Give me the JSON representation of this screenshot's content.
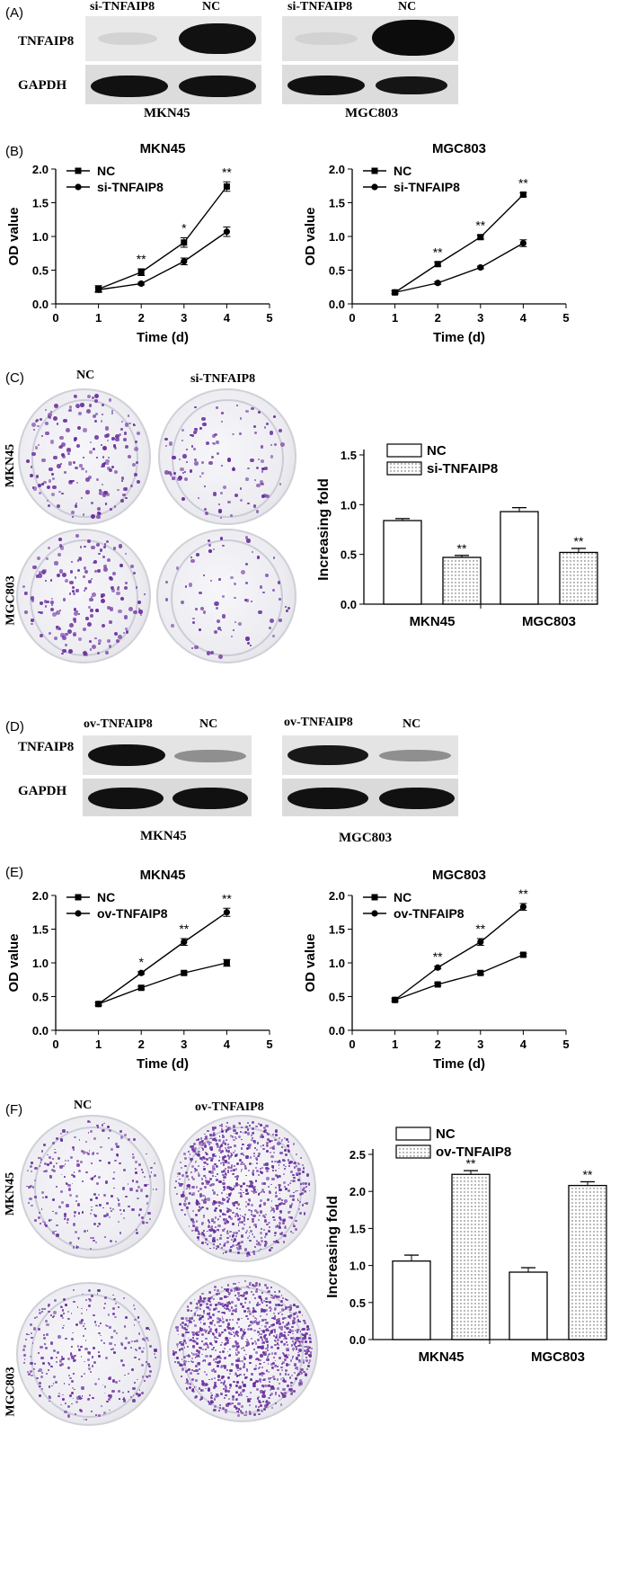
{
  "panels": {
    "A": {
      "label": "(A)",
      "lanes": [
        "si-TNFAIP8",
        "NC",
        "si-TNFAIP8",
        "NC"
      ],
      "rows": [
        "TNFAIP8",
        "GAPDH"
      ],
      "cells": [
        "MKN45",
        "MGC803"
      ]
    },
    "B": {
      "label": "(B)"
    },
    "C": {
      "label": "(C)",
      "cols": [
        "NC",
        "si-TNFAIP8"
      ],
      "rows": [
        "MKN45",
        "MGC803"
      ]
    },
    "D": {
      "label": "(D)",
      "lanes": [
        "ov-TNFAIP8",
        "NC",
        "ov-TNFAIP8",
        "NC"
      ],
      "rows": [
        "TNFAIP8",
        "GAPDH"
      ],
      "cells": [
        "MKN45",
        "MGC803"
      ]
    },
    "E": {
      "label": "(E)"
    },
    "F": {
      "label": "(F)",
      "cols": [
        "NC",
        "ov-TNFAIP8"
      ],
      "rows": [
        "MKN45",
        "MGC803"
      ]
    }
  },
  "chart_data": [
    {
      "id": "B-MKN45",
      "type": "line",
      "title": "MKN45",
      "xlabel": "Time (d)",
      "ylabel": "OD value",
      "xlim": [
        0,
        5
      ],
      "ylim": [
        0,
        2.0
      ],
      "xticks": [
        "0",
        "1",
        "2",
        "3",
        "4",
        "5"
      ],
      "yticks": [
        "0.0",
        "0.5",
        "1.0",
        "1.5",
        "2.0"
      ],
      "legend_position": "top-left",
      "x": [
        1,
        2,
        3,
        4
      ],
      "series": [
        {
          "name": "NC",
          "marker": "square",
          "values": [
            0.22,
            0.47,
            0.91,
            1.74
          ],
          "errors": [
            0.05,
            0.05,
            0.07,
            0.07
          ]
        },
        {
          "name": "si-TNFAIP8",
          "marker": "circle",
          "values": [
            0.21,
            0.3,
            0.63,
            1.07
          ],
          "errors": [
            0.03,
            0.02,
            0.05,
            0.07
          ]
        }
      ],
      "annotations": [
        {
          "x": 2,
          "text": "**"
        },
        {
          "x": 3,
          "text": "*"
        },
        {
          "x": 4,
          "text": "**"
        }
      ]
    },
    {
      "id": "B-MGC803",
      "type": "line",
      "title": "MGC803",
      "xlabel": "Time (d)",
      "ylabel": "OD value",
      "xlim": [
        0,
        5
      ],
      "ylim": [
        0,
        2.0
      ],
      "xticks": [
        "0",
        "1",
        "2",
        "3",
        "4",
        "5"
      ],
      "yticks": [
        "0.0",
        "0.5",
        "1.0",
        "1.5",
        "2.0"
      ],
      "legend_position": "top-left",
      "x": [
        1,
        2,
        3,
        4
      ],
      "series": [
        {
          "name": "NC",
          "marker": "square",
          "values": [
            0.17,
            0.59,
            0.99,
            1.62
          ],
          "errors": [
            0.02,
            0.03,
            0.03,
            0.03
          ]
        },
        {
          "name": "si-TNFAIP8",
          "marker": "circle",
          "values": [
            0.17,
            0.31,
            0.54,
            0.9
          ],
          "errors": [
            0.02,
            0.02,
            0.02,
            0.05
          ]
        }
      ],
      "annotations": [
        {
          "x": 2,
          "text": "**"
        },
        {
          "x": 3,
          "text": "**"
        },
        {
          "x": 4,
          "text": "**"
        }
      ]
    },
    {
      "id": "C-bar",
      "type": "bar",
      "ylabel": "Increasing fold",
      "ylim": [
        0,
        1.5
      ],
      "yticks": [
        "0.0",
        "0.5",
        "1.0",
        "1.5"
      ],
      "legend_position": "top",
      "categories": [
        "MKN45",
        "MGC803"
      ],
      "series": [
        {
          "name": "NC",
          "pattern": "solid",
          "values": [
            0.84,
            0.93
          ],
          "errors": [
            0.02,
            0.04
          ]
        },
        {
          "name": "si-TNFAIP8",
          "pattern": "dotted",
          "values": [
            0.47,
            0.52
          ],
          "errors": [
            0.02,
            0.04
          ]
        }
      ],
      "annotations": [
        {
          "category": "MKN45",
          "series": "si-TNFAIP8",
          "text": "**"
        },
        {
          "category": "MGC803",
          "series": "si-TNFAIP8",
          "text": "**"
        }
      ]
    },
    {
      "id": "E-MKN45",
      "type": "line",
      "title": "MKN45",
      "xlabel": "Time (d)",
      "ylabel": "OD value",
      "xlim": [
        0,
        5
      ],
      "ylim": [
        0,
        2.0
      ],
      "xticks": [
        "0",
        "1",
        "2",
        "3",
        "4",
        "5"
      ],
      "yticks": [
        "0.0",
        "0.5",
        "1.0",
        "1.5",
        "2.0"
      ],
      "legend_position": "top-left",
      "x": [
        1,
        2,
        3,
        4
      ],
      "series": [
        {
          "name": "NC",
          "marker": "square",
          "values": [
            0.39,
            0.63,
            0.85,
            1.0
          ],
          "errors": [
            0.02,
            0.02,
            0.02,
            0.05
          ]
        },
        {
          "name": "ov-TNFAIP8",
          "marker": "circle",
          "values": [
            0.39,
            0.85,
            1.31,
            1.75
          ],
          "errors": [
            0.02,
            0.02,
            0.05,
            0.06
          ]
        }
      ],
      "annotations": [
        {
          "x": 2,
          "text": "*"
        },
        {
          "x": 3,
          "text": "**"
        },
        {
          "x": 4,
          "text": "**"
        }
      ]
    },
    {
      "id": "E-MGC803",
      "type": "line",
      "title": "MGC803",
      "xlabel": "Time (d)",
      "ylabel": "OD value",
      "xlim": [
        0,
        5
      ],
      "ylim": [
        0,
        2.0
      ],
      "xticks": [
        "0",
        "1",
        "2",
        "3",
        "4",
        "5"
      ],
      "yticks": [
        "0.0",
        "0.5",
        "1.0",
        "1.5",
        "2.0"
      ],
      "legend_position": "top-left",
      "x": [
        1,
        2,
        3,
        4
      ],
      "series": [
        {
          "name": "NC",
          "marker": "square",
          "values": [
            0.45,
            0.68,
            0.85,
            1.12
          ],
          "errors": [
            0.02,
            0.02,
            0.02,
            0.02
          ]
        },
        {
          "name": "ov-TNFAIP8",
          "marker": "circle",
          "values": [
            0.45,
            0.93,
            1.31,
            1.83
          ],
          "errors": [
            0.02,
            0.02,
            0.05,
            0.05
          ]
        }
      ],
      "annotations": [
        {
          "x": 2,
          "text": "**"
        },
        {
          "x": 3,
          "text": "**"
        },
        {
          "x": 4,
          "text": "**"
        }
      ]
    },
    {
      "id": "F-bar",
      "type": "bar",
      "ylabel": "Increasing fold",
      "ylim": [
        0,
        2.5
      ],
      "yticks": [
        "0.0",
        "0.5",
        "1.0",
        "1.5",
        "2.0",
        "2.5"
      ],
      "legend_position": "top",
      "categories": [
        "MKN45",
        "MGC803"
      ],
      "series": [
        {
          "name": "NC",
          "pattern": "solid",
          "values": [
            1.06,
            0.91
          ],
          "errors": [
            0.08,
            0.06
          ]
        },
        {
          "name": "ov-TNFAIP8",
          "pattern": "dotted",
          "values": [
            2.23,
            2.08
          ],
          "errors": [
            0.05,
            0.05
          ]
        }
      ],
      "annotations": [
        {
          "category": "MKN45",
          "series": "ov-TNFAIP8",
          "text": "**"
        },
        {
          "category": "MGC803",
          "series": "ov-TNFAIP8",
          "text": "**"
        }
      ]
    }
  ]
}
